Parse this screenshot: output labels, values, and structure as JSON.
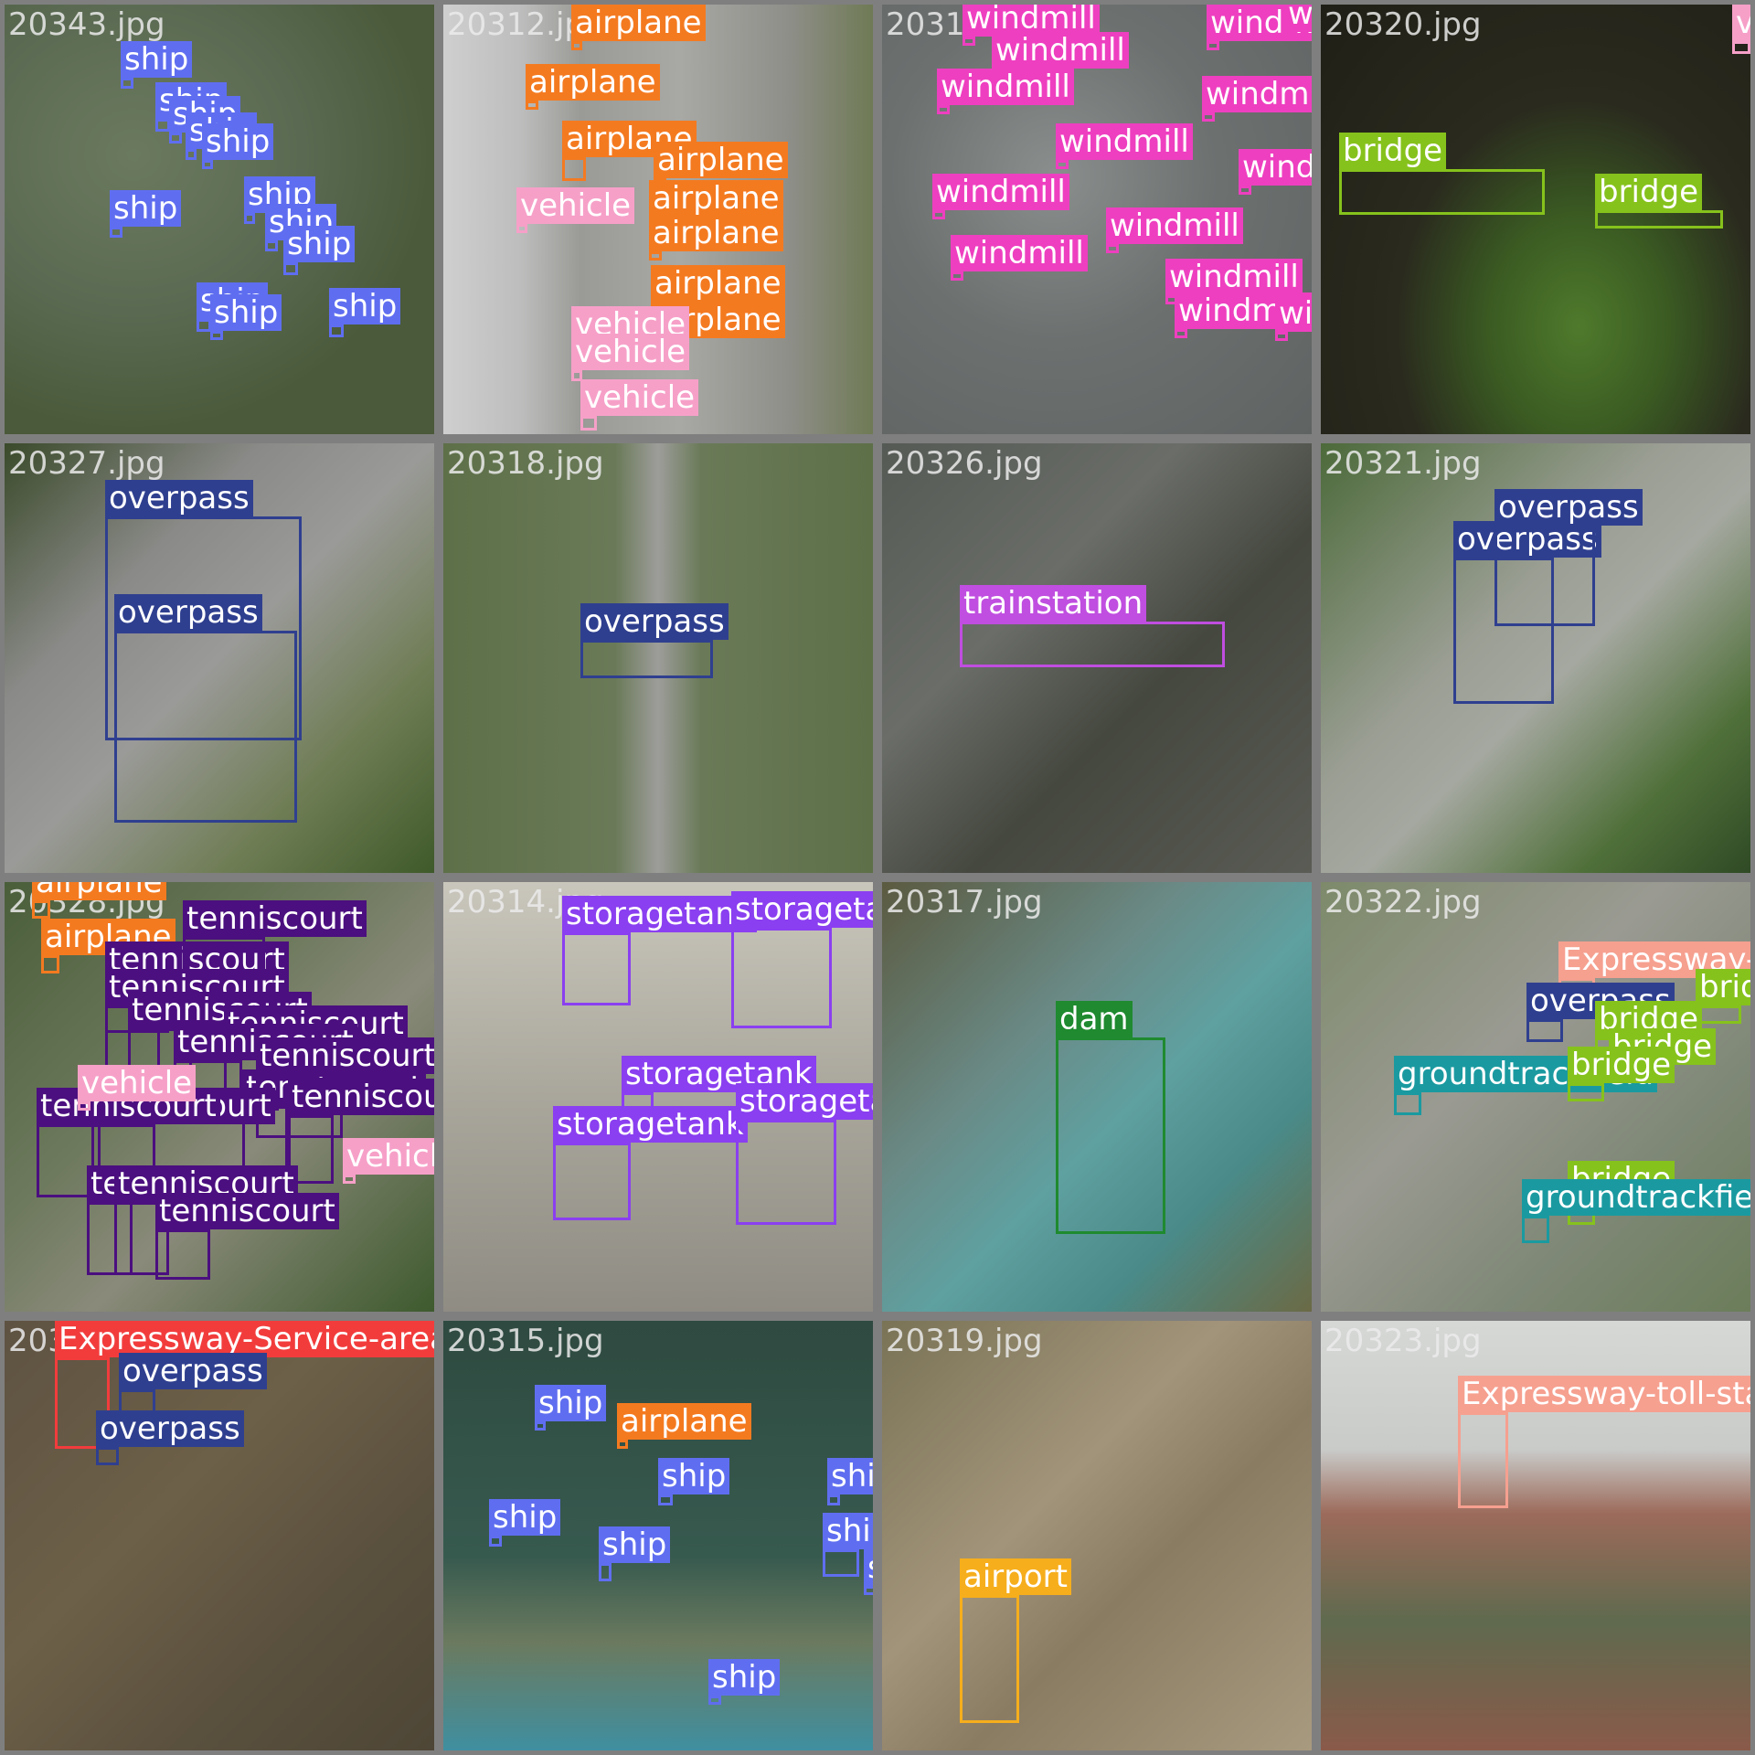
{
  "colors": {
    "ship": "#5f6ef0",
    "airplane": "#f47a20",
    "vehicle": "#f6a0c8",
    "windmill": "#ee3fc0",
    "bridge": "#86c21c",
    "overpass": "#2f3f8f",
    "trainstation": "#c04ee0",
    "tenniscourt": "#4b0f7f",
    "storagetank": "#8a3ff0",
    "dam": "#1f8a2f",
    "groundtrackfield": "#1a9aa0",
    "Expressway-Service-area": "#f23c3c",
    "Expressway-toll-station": "#f6a090",
    "airport": "#f6ae1c"
  },
  "tiles": [
    {
      "file": "20343.jpg",
      "scene": "lake-green",
      "detections": [
        {
          "label": "ship"
        },
        {
          "label": "ship"
        },
        {
          "label": "ship"
        },
        {
          "label": "ship"
        },
        {
          "label": "ship"
        },
        {
          "label": "ship"
        },
        {
          "label": "ship"
        },
        {
          "label": "ship"
        },
        {
          "label": "ship"
        },
        {
          "label": "ship"
        },
        {
          "label": "ship"
        },
        {
          "label": "ship"
        }
      ]
    },
    {
      "file": "20312.jpg",
      "scene": "airfield",
      "detections": [
        {
          "label": "airplane"
        },
        {
          "label": "airplane"
        },
        {
          "label": "airplane"
        },
        {
          "label": "airplane"
        },
        {
          "label": "airplane"
        },
        {
          "label": "airplane"
        },
        {
          "label": "airplane"
        },
        {
          "label": "airplane"
        },
        {
          "label": "vehicle"
        },
        {
          "label": "vehicle"
        },
        {
          "label": "vehicle"
        },
        {
          "label": "vehicle"
        }
      ]
    },
    {
      "file": "20316.jpg",
      "scene": "clouds",
      "detections": [
        {
          "label": "windmill"
        },
        {
          "label": "windmill"
        },
        {
          "label": "windmill"
        },
        {
          "label": "windmill"
        },
        {
          "label": "windmill"
        },
        {
          "label": "windmill"
        },
        {
          "label": "windmill"
        },
        {
          "label": "windmill"
        },
        {
          "label": "windmill"
        },
        {
          "label": "windmill"
        },
        {
          "label": "windmill"
        },
        {
          "label": "windmill"
        },
        {
          "label": "windmill"
        },
        {
          "label": "windmill"
        }
      ]
    },
    {
      "file": "20320.jpg",
      "scene": "golf-river",
      "detections": [
        {
          "label": "bridge"
        },
        {
          "label": "bridge"
        },
        {
          "label": "vehicle"
        }
      ]
    },
    {
      "file": "20327.jpg",
      "scene": "highway",
      "detections": [
        {
          "label": "overpass"
        },
        {
          "label": "overpass"
        }
      ]
    },
    {
      "file": "20318.jpg",
      "scene": "suburb",
      "detections": [
        {
          "label": "overpass"
        }
      ]
    },
    {
      "file": "20326.jpg",
      "scene": "city",
      "detections": [
        {
          "label": "trainstation"
        }
      ]
    },
    {
      "file": "20321.jpg",
      "scene": "highway-green",
      "detections": [
        {
          "label": "overpass"
        },
        {
          "label": "overpass"
        }
      ]
    },
    {
      "file": "20328.jpg",
      "scene": "resort",
      "detections": [
        {
          "label": "airplane"
        },
        {
          "label": "airplane"
        },
        {
          "label": "tenniscourt"
        },
        {
          "label": "tenniscourt"
        },
        {
          "label": "tenniscourt"
        },
        {
          "label": "tenniscourt"
        },
        {
          "label": "tenniscourt"
        },
        {
          "label": "tenniscourt"
        },
        {
          "label": "tenniscourt"
        },
        {
          "label": "tenniscourt"
        },
        {
          "label": "tenniscourt"
        },
        {
          "label": "tenniscourt"
        },
        {
          "label": "tenniscourt"
        },
        {
          "label": "tenniscourt"
        },
        {
          "label": "tenniscourt"
        },
        {
          "label": "tenniscourt"
        },
        {
          "label": "vehicle"
        },
        {
          "label": "vehicle"
        }
      ]
    },
    {
      "file": "20314.jpg",
      "scene": "industrial",
      "detections": [
        {
          "label": "storagetank"
        },
        {
          "label": "storagetank"
        },
        {
          "label": "storagetank"
        },
        {
          "label": "storagetank"
        },
        {
          "label": "storagetank"
        }
      ]
    },
    {
      "file": "20317.jpg",
      "scene": "dam",
      "detections": [
        {
          "label": "dam"
        }
      ]
    },
    {
      "file": "20322.jpg",
      "scene": "town",
      "detections": [
        {
          "label": "Expressway-toll-station"
        },
        {
          "label": "bridge"
        },
        {
          "label": "overpass"
        },
        {
          "label": "bridge"
        },
        {
          "label": "bridge"
        },
        {
          "label": "groundtrackfield"
        },
        {
          "label": "bridge"
        },
        {
          "label": "bridge"
        },
        {
          "label": "groundtrackfield"
        }
      ]
    },
    {
      "file": "20324.jpg",
      "scene": "farmland",
      "detections": [
        {
          "label": "Expressway-Service-area"
        },
        {
          "label": "overpass"
        },
        {
          "label": "overpass"
        }
      ]
    },
    {
      "file": "20315.jpg",
      "scene": "sea",
      "detections": [
        {
          "label": "ship"
        },
        {
          "label": "airplane"
        },
        {
          "label": "ship"
        },
        {
          "label": "ship"
        },
        {
          "label": "ship"
        },
        {
          "label": "ship"
        },
        {
          "label": "ship"
        },
        {
          "label": "ship"
        },
        {
          "label": "ship"
        }
      ]
    },
    {
      "file": "20319.jpg",
      "scene": "desert",
      "detections": [
        {
          "label": "airport"
        }
      ]
    },
    {
      "file": "20323.jpg",
      "scene": "rooftops",
      "detections": [
        {
          "label": "Expressway-toll-station"
        }
      ]
    }
  ]
}
